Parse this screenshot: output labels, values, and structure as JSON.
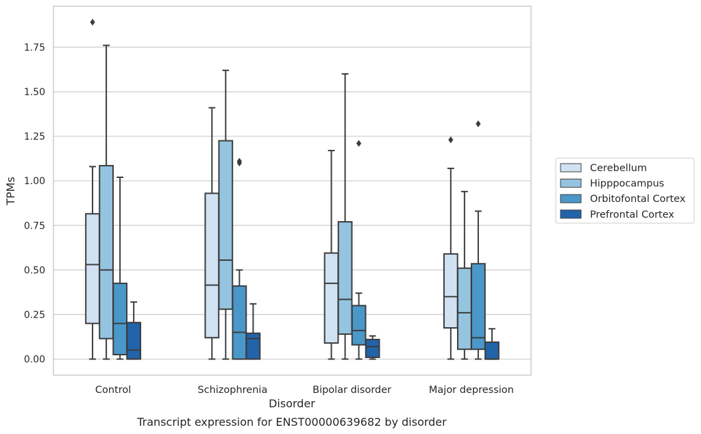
{
  "chart_data": {
    "type": "box",
    "title": "",
    "caption": "Transcript expression for ENST00000639682 by disorder",
    "xlabel": "Disorder",
    "ylabel": "TPMs",
    "ylim": [
      -0.09,
      1.98
    ],
    "yticks": [
      "0.00",
      "0.25",
      "0.50",
      "0.75",
      "1.00",
      "1.25",
      "1.50",
      "1.75"
    ],
    "grid": "horizontal",
    "legend_position": "right",
    "categories": [
      "Control",
      "Schizophrenia",
      "Bipolar disorder",
      "Major depression"
    ],
    "series": [
      {
        "name": "Cerebellum",
        "color": "#d0e1f2",
        "boxes": [
          {
            "whislo": 0.0,
            "q1": 0.2,
            "med": 0.53,
            "q3": 0.815,
            "whishi": 1.08,
            "fliers": [
              1.89
            ]
          },
          {
            "whislo": 0.0,
            "q1": 0.12,
            "med": 0.415,
            "q3": 0.93,
            "whishi": 1.41,
            "fliers": []
          },
          {
            "whislo": 0.0,
            "q1": 0.09,
            "med": 0.425,
            "q3": 0.595,
            "whishi": 1.17,
            "fliers": []
          },
          {
            "whislo": 0.0,
            "q1": 0.175,
            "med": 0.35,
            "q3": 0.59,
            "whishi": 1.07,
            "fliers": [
              1.23
            ]
          }
        ]
      },
      {
        "name": "Hipppocampus",
        "color": "#94c4df",
        "boxes": [
          {
            "whislo": 0.0,
            "q1": 0.115,
            "med": 0.5,
            "q3": 1.085,
            "whishi": 1.76,
            "fliers": []
          },
          {
            "whislo": 0.0,
            "q1": 0.28,
            "med": 0.555,
            "q3": 1.225,
            "whishi": 1.62,
            "fliers": []
          },
          {
            "whislo": 0.0,
            "q1": 0.14,
            "med": 0.335,
            "q3": 0.77,
            "whishi": 1.6,
            "fliers": []
          },
          {
            "whislo": 0.0,
            "q1": 0.055,
            "med": 0.26,
            "q3": 0.51,
            "whishi": 0.94,
            "fliers": []
          }
        ]
      },
      {
        "name": "Orbitofontal Cortex",
        "color": "#4a98c9",
        "boxes": [
          {
            "whislo": 0.0,
            "q1": 0.025,
            "med": 0.2,
            "q3": 0.425,
            "whishi": 1.02,
            "fliers": []
          },
          {
            "whislo": 0.0,
            "q1": 0.0,
            "med": 0.15,
            "q3": 0.41,
            "whishi": 0.5,
            "fliers": [
              1.1,
              1.11
            ]
          },
          {
            "whislo": 0.0,
            "q1": 0.08,
            "med": 0.16,
            "q3": 0.3,
            "whishi": 0.37,
            "fliers": [
              1.21
            ]
          },
          {
            "whislo": 0.0,
            "q1": 0.055,
            "med": 0.12,
            "q3": 0.535,
            "whishi": 0.83,
            "fliers": [
              1.32
            ]
          }
        ]
      },
      {
        "name": "Prefrontal Cortex",
        "color": "#2164aa",
        "boxes": [
          {
            "whislo": 0.0,
            "q1": 0.0,
            "med": 0.05,
            "q3": 0.205,
            "whishi": 0.32,
            "fliers": []
          },
          {
            "whislo": 0.0,
            "q1": 0.0,
            "med": 0.115,
            "q3": 0.145,
            "whishi": 0.31,
            "fliers": []
          },
          {
            "whislo": 0.0,
            "q1": 0.01,
            "med": 0.07,
            "q3": 0.11,
            "whishi": 0.13,
            "fliers": []
          },
          {
            "whislo": 0.0,
            "q1": 0.0,
            "med": 0.0,
            "q3": 0.095,
            "whishi": 0.17,
            "fliers": []
          }
        ]
      }
    ]
  }
}
